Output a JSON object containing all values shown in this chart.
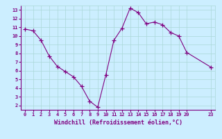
{
  "x": [
    0,
    1,
    2,
    3,
    4,
    5,
    6,
    7,
    8,
    9,
    10,
    11,
    12,
    13,
    14,
    15,
    16,
    17,
    18,
    19,
    20,
    23
  ],
  "y": [
    10.8,
    10.6,
    9.5,
    7.7,
    6.5,
    5.9,
    5.3,
    4.2,
    2.5,
    1.8,
    5.5,
    9.5,
    10.9,
    13.2,
    12.7,
    11.4,
    11.6,
    11.3,
    10.4,
    10.0,
    8.1,
    6.4
  ],
  "xlim": [
    -0.5,
    23.5
  ],
  "ylim": [
    1.5,
    13.5
  ],
  "xticks": [
    0,
    1,
    2,
    3,
    4,
    5,
    6,
    7,
    8,
    9,
    10,
    11,
    12,
    13,
    14,
    15,
    16,
    17,
    18,
    19,
    20,
    23
  ],
  "yticks": [
    2,
    3,
    4,
    5,
    6,
    7,
    8,
    9,
    10,
    11,
    12,
    13
  ],
  "xlabel": "Windchill (Refroidissement éolien,°C)",
  "line_color": "#800080",
  "marker_color": "#800080",
  "bg_color": "#cceeff",
  "grid_color": "#aad8d8",
  "axis_color": "#800080",
  "tick_color": "#800080",
  "label_color": "#800080"
}
